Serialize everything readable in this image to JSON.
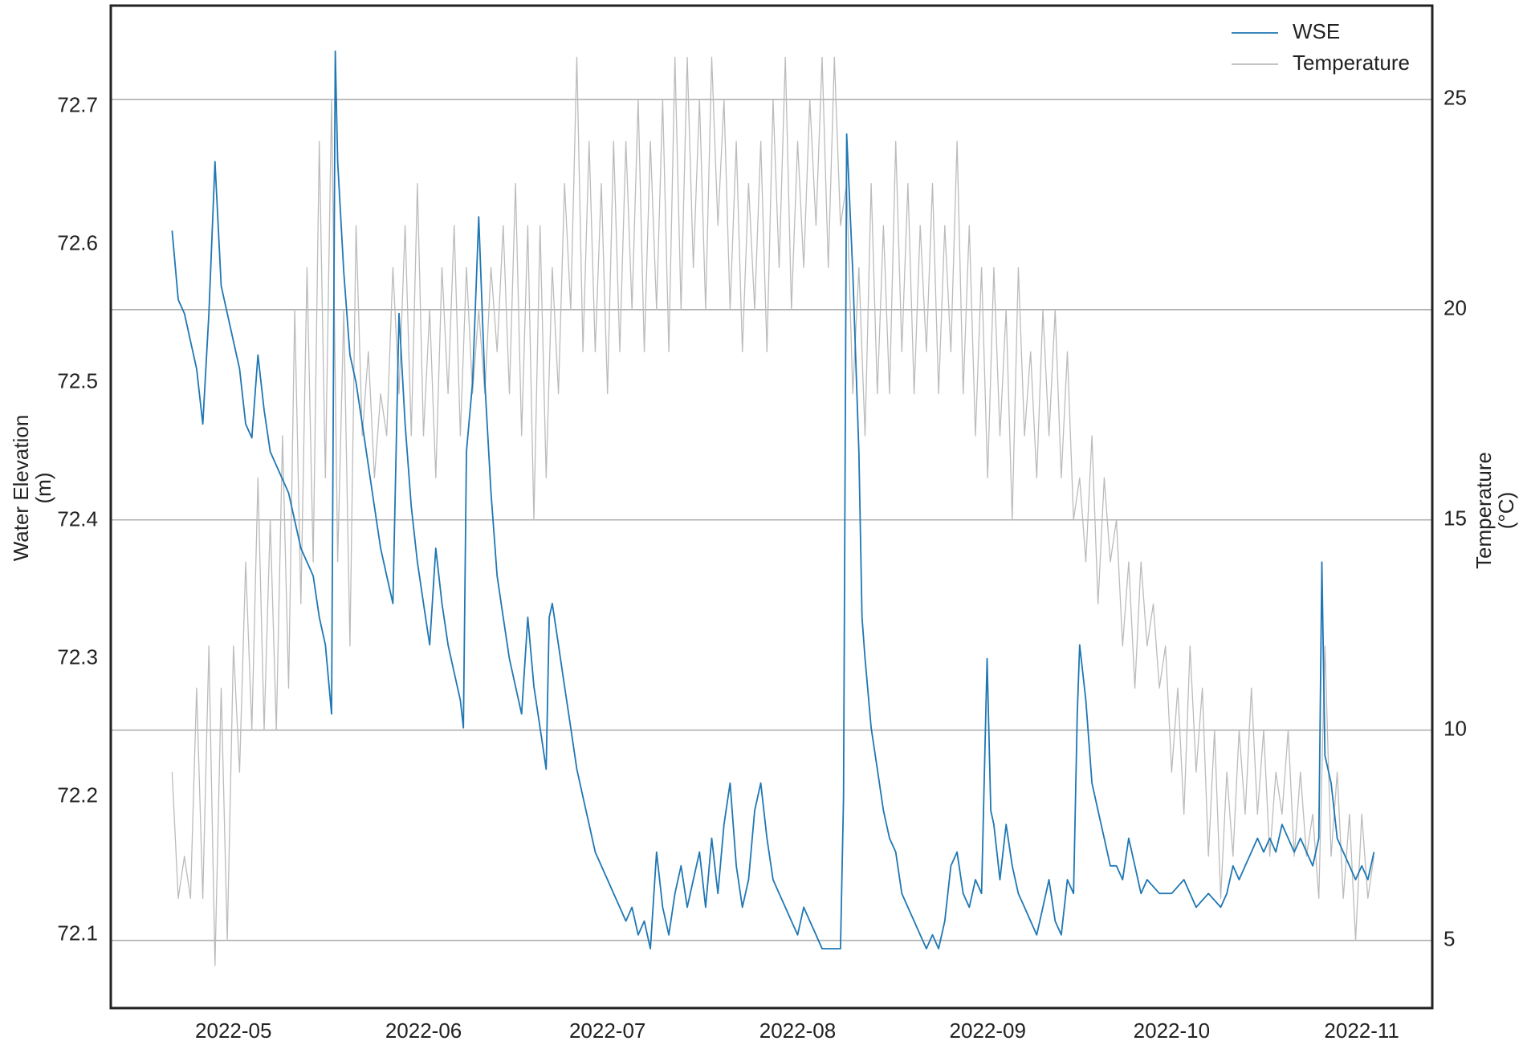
{
  "chart_data": {
    "type": "line",
    "y_label": [
      "Water Elevation",
      "(m)"
    ],
    "y2_label": [
      "Temperature",
      "(°C)"
    ],
    "xlim": [
      101,
      316.5
    ],
    "xticks": [
      {
        "value": 121,
        "label": "2022-05"
      },
      {
        "value": 152,
        "label": "2022-06"
      },
      {
        "value": 182,
        "label": "2022-07"
      },
      {
        "value": 213,
        "label": "2022-08"
      },
      {
        "value": 244,
        "label": "2022-09"
      },
      {
        "value": 274,
        "label": "2022-10"
      },
      {
        "value": 305,
        "label": "2022-11"
      }
    ],
    "ylim": [
      72.047,
      72.773
    ],
    "yticks": [
      72.1,
      72.2,
      72.3,
      72.4,
      72.5,
      72.6,
      72.7
    ],
    "y2lim": [
      3.39,
      27.23
    ],
    "y2ticks": [
      5,
      10,
      15,
      20,
      25
    ],
    "grid": "y2",
    "legend": "upper right",
    "series": [
      {
        "name": "WSE",
        "color": "#1f77b4",
        "axis": "y",
        "x": [
          111,
          112,
          113,
          114,
          115,
          116,
          117,
          118,
          119,
          120,
          122,
          123,
          124,
          125,
          126,
          127,
          128,
          130,
          131,
          132,
          134,
          135,
          136,
          137,
          137.6,
          138,
          139,
          140,
          141,
          142,
          143,
          144,
          145,
          146,
          147,
          148,
          149,
          150,
          151,
          152,
          153,
          154,
          155,
          156,
          157,
          158,
          158.5,
          159,
          160,
          161,
          162,
          163,
          164,
          165,
          166,
          167,
          168,
          169,
          170,
          171,
          172,
          172.5,
          173,
          174,
          175,
          176,
          177,
          178,
          179,
          180,
          181,
          182,
          183,
          184,
          185,
          186,
          187,
          188,
          189,
          190,
          191,
          192,
          193,
          194,
          195,
          196,
          197,
          198,
          199,
          200,
          201,
          202,
          203,
          204,
          205,
          206,
          207,
          208,
          209,
          210,
          211,
          212,
          213,
          214,
          215,
          216,
          217,
          218,
          219,
          220,
          220.5,
          221,
          222,
          223,
          223.5,
          224,
          225,
          226,
          227,
          228,
          229,
          230,
          231,
          232,
          233,
          234,
          235,
          236,
          237,
          238,
          239,
          240,
          241,
          242,
          243,
          243.9,
          244.5,
          245,
          246,
          247,
          248,
          249,
          250,
          251,
          252,
          253,
          254,
          255,
          256,
          257,
          258,
          258.6,
          259,
          260,
          261,
          262,
          263,
          264,
          265,
          266,
          267,
          268,
          269,
          270,
          272,
          274,
          276,
          278,
          280,
          282,
          283,
          284,
          285,
          286,
          287,
          288,
          289,
          290,
          291,
          292,
          293,
          294,
          295,
          296,
          297,
          298,
          298.5,
          299,
          300,
          301,
          302,
          303,
          304,
          305,
          306,
          307
        ],
        "values": [
          72.61,
          72.56,
          72.55,
          72.53,
          72.51,
          72.47,
          72.55,
          72.66,
          72.57,
          72.55,
          72.51,
          72.47,
          72.46,
          72.52,
          72.48,
          72.45,
          72.44,
          72.42,
          72.4,
          72.38,
          72.36,
          72.33,
          72.31,
          72.26,
          72.74,
          72.66,
          72.58,
          72.52,
          72.5,
          72.47,
          72.44,
          72.41,
          72.38,
          72.36,
          72.34,
          72.55,
          72.47,
          72.41,
          72.37,
          72.34,
          72.31,
          72.38,
          72.34,
          72.31,
          72.29,
          72.27,
          72.25,
          72.45,
          72.5,
          72.62,
          72.5,
          72.42,
          72.36,
          72.33,
          72.3,
          72.28,
          72.26,
          72.33,
          72.28,
          72.25,
          72.22,
          72.33,
          72.34,
          72.31,
          72.28,
          72.25,
          72.22,
          72.2,
          72.18,
          72.16,
          72.15,
          72.14,
          72.13,
          72.12,
          72.11,
          72.12,
          72.1,
          72.11,
          72.09,
          72.16,
          72.12,
          72.1,
          72.13,
          72.15,
          72.12,
          72.14,
          72.16,
          72.12,
          72.17,
          72.13,
          72.18,
          72.21,
          72.15,
          72.12,
          72.14,
          72.19,
          72.21,
          72.17,
          72.14,
          72.13,
          72.12,
          72.11,
          72.1,
          72.12,
          72.11,
          72.1,
          72.09,
          72.09,
          72.09,
          72.09,
          72.2,
          72.68,
          72.58,
          72.45,
          72.33,
          72.3,
          72.25,
          72.22,
          72.19,
          72.17,
          72.16,
          72.13,
          72.12,
          72.11,
          72.1,
          72.09,
          72.1,
          72.09,
          72.11,
          72.15,
          72.16,
          72.13,
          72.12,
          72.14,
          72.13,
          72.3,
          72.19,
          72.18,
          72.14,
          72.18,
          72.15,
          72.13,
          72.12,
          72.11,
          72.1,
          72.12,
          72.14,
          72.11,
          72.1,
          72.14,
          72.13,
          72.26,
          72.31,
          72.27,
          72.21,
          72.19,
          72.17,
          72.15,
          72.15,
          72.14,
          72.17,
          72.15,
          72.13,
          72.14,
          72.13,
          72.13,
          72.14,
          72.12,
          72.13,
          72.12,
          72.13,
          72.15,
          72.14,
          72.15,
          72.16,
          72.17,
          72.16,
          72.17,
          72.16,
          72.18,
          72.17,
          72.16,
          72.17,
          72.16,
          72.15,
          72.17,
          72.37,
          72.23,
          72.21,
          72.17,
          72.16,
          72.15,
          72.14,
          72.15,
          72.14,
          72.16
        ]
      },
      {
        "name": "Temperature",
        "color": "#bbbbbb",
        "axis": "y2",
        "x": [
          111,
          112,
          113,
          114,
          115,
          116,
          117,
          118,
          119,
          120,
          121,
          122,
          123,
          124,
          125,
          126,
          127,
          128,
          129,
          130,
          131,
          132,
          133,
          134,
          135,
          136,
          137,
          138,
          139,
          140,
          141,
          142,
          143,
          144,
          145,
          146,
          147,
          148,
          149,
          150,
          151,
          152,
          153,
          154,
          155,
          156,
          157,
          158,
          159,
          160,
          161,
          162,
          163,
          164,
          165,
          166,
          167,
          168,
          169,
          170,
          171,
          172,
          173,
          174,
          175,
          176,
          177,
          178,
          179,
          180,
          181,
          182,
          183,
          184,
          185,
          186,
          187,
          188,
          189,
          190,
          191,
          192,
          193,
          194,
          195,
          196,
          197,
          198,
          199,
          200,
          201,
          202,
          203,
          204,
          205,
          206,
          207,
          208,
          209,
          210,
          211,
          212,
          213,
          214,
          215,
          216,
          217,
          218,
          219,
          220,
          221,
          222,
          223,
          224,
          225,
          226,
          227,
          228,
          229,
          230,
          231,
          232,
          233,
          234,
          235,
          236,
          237,
          238,
          239,
          240,
          241,
          242,
          243,
          244,
          245,
          246,
          247,
          248,
          249,
          250,
          251,
          252,
          253,
          254,
          255,
          256,
          257,
          258,
          259,
          260,
          261,
          262,
          263,
          264,
          265,
          266,
          267,
          268,
          269,
          270,
          271,
          272,
          273,
          274,
          275,
          276,
          277,
          278,
          279,
          280,
          281,
          282,
          283,
          284,
          285,
          286,
          287,
          288,
          289,
          290,
          291,
          292,
          293,
          294,
          295,
          296,
          297,
          298,
          299,
          300,
          301,
          302,
          303,
          304,
          305,
          306,
          307
        ],
        "values": [
          9,
          6,
          7,
          6,
          11,
          6,
          12,
          4.4,
          11,
          5,
          12,
          9,
          14,
          10,
          16,
          10,
          15,
          10,
          17,
          11,
          20,
          13,
          21,
          14,
          24,
          16,
          25,
          14,
          20,
          12,
          22,
          17,
          19,
          16,
          18,
          17,
          21,
          18,
          22,
          17,
          23,
          17,
          20,
          16,
          21,
          18,
          22,
          17,
          21,
          18,
          20,
          18,
          21,
          19,
          22,
          18,
          23,
          17,
          22,
          15,
          22,
          16,
          21,
          18,
          23,
          20,
          26,
          19,
          24,
          19,
          23,
          18,
          24,
          19,
          24,
          20,
          25,
          19,
          24,
          20,
          25,
          19,
          26,
          20,
          26,
          21,
          25,
          20,
          26,
          22,
          25,
          20,
          24,
          19,
          23,
          20,
          24,
          19,
          25,
          21,
          26,
          20,
          24,
          21,
          25,
          22,
          26,
          21,
          26,
          22,
          23,
          18,
          21,
          17,
          23,
          18,
          22,
          18,
          24,
          19,
          23,
          18,
          22,
          19,
          23,
          18,
          22,
          19,
          24,
          18,
          22,
          17,
          21,
          16,
          21,
          17,
          20,
          15,
          21,
          17,
          19,
          16,
          20,
          17,
          20,
          16,
          19,
          15,
          16,
          14,
          17,
          13,
          16,
          14,
          15,
          12,
          14,
          11,
          14,
          12,
          13,
          11,
          12,
          9,
          11,
          8,
          12,
          9,
          11,
          7,
          10,
          6,
          9,
          7,
          10,
          8,
          11,
          8,
          10,
          7,
          9,
          8,
          10,
          7,
          9,
          7,
          8,
          6,
          12,
          7,
          9,
          6,
          8,
          5,
          8,
          6,
          7
        ]
      }
    ]
  }
}
